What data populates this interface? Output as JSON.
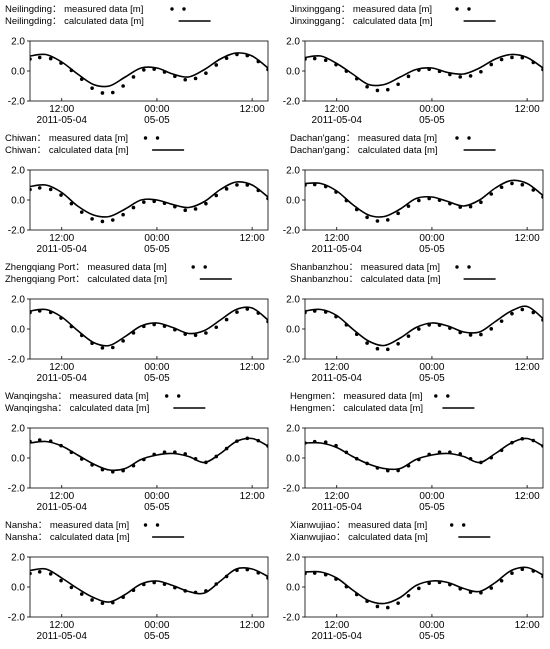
{
  "legend_template": {
    "measured_label": "measured data [m]",
    "calculated_label": "calculated data [m]",
    "separator": "："
  },
  "axis": {
    "y_ticks": [
      "2.0",
      "0.0",
      "-2.0"
    ],
    "y_ticks_values": [
      2.0,
      0.0,
      -2.0
    ],
    "ylim": [
      -2.0,
      2.0
    ],
    "x_ticks": [
      {
        "time": "2011-05-04 12:00",
        "label": "12:00",
        "sublabel": "2011-05-04"
      },
      {
        "time": "2011-05-05 00:00",
        "label": "00:00",
        "sublabel": "05-05"
      },
      {
        "time": "2011-05-05 12:00",
        "label": "12:00",
        "sublabel": ""
      }
    ],
    "xlim": [
      "2011-05-04 08:00",
      "2011-05-05 14:00"
    ]
  },
  "chart_data": [
    {
      "type": "line",
      "station": "Neilingding",
      "x": [
        "2011-05-04 08:00",
        "2011-05-04 10:00",
        "2011-05-04 12:00",
        "2011-05-04 14:00",
        "2011-05-04 16:00",
        "2011-05-04 18:00",
        "2011-05-04 20:00",
        "2011-05-04 22:00",
        "2011-05-05 00:00",
        "2011-05-05 02:00",
        "2011-05-05 04:00",
        "2011-05-05 06:00",
        "2011-05-05 08:00",
        "2011-05-05 10:00",
        "2011-05-05 12:00",
        "2011-05-05 14:00"
      ],
      "series": [
        {
          "name": "measured data [m]",
          "style": "dots",
          "values": [
            0.8,
            0.9,
            0.5,
            -0.3,
            -1.2,
            -1.5,
            -0.9,
            0.0,
            0.1,
            -0.3,
            -0.6,
            -0.2,
            0.6,
            1.1,
            0.9,
            0.1
          ]
        },
        {
          "name": "calculated data [m]",
          "style": "line",
          "values": [
            1.0,
            1.1,
            0.6,
            -0.2,
            -0.9,
            -1.0,
            -0.4,
            0.2,
            0.2,
            -0.2,
            -0.4,
            0.1,
            0.8,
            1.2,
            1.0,
            0.2
          ]
        }
      ]
    },
    {
      "type": "line",
      "station": "Jinxinggang",
      "x": [
        "2011-05-04 08:00",
        "2011-05-04 10:00",
        "2011-05-04 12:00",
        "2011-05-04 14:00",
        "2011-05-04 16:00",
        "2011-05-04 18:00",
        "2011-05-04 20:00",
        "2011-05-04 22:00",
        "2011-05-05 00:00",
        "2011-05-05 02:00",
        "2011-05-05 04:00",
        "2011-05-05 06:00",
        "2011-05-05 08:00",
        "2011-05-05 10:00",
        "2011-05-05 12:00",
        "2011-05-05 14:00"
      ],
      "series": [
        {
          "name": "measured data [m]",
          "style": "dots",
          "values": [
            0.8,
            0.8,
            0.4,
            -0.3,
            -1.1,
            -1.3,
            -0.8,
            0.0,
            0.1,
            -0.2,
            -0.4,
            -0.1,
            0.6,
            0.9,
            0.8,
            0.1
          ]
        },
        {
          "name": "calculated data [m]",
          "style": "line",
          "values": [
            0.9,
            1.0,
            0.5,
            -0.2,
            -0.9,
            -0.9,
            -0.4,
            0.1,
            0.2,
            -0.1,
            -0.2,
            0.2,
            0.8,
            1.1,
            0.9,
            0.2
          ]
        }
      ]
    },
    {
      "type": "line",
      "station": "Chiwan",
      "x": [
        "2011-05-04 08:00",
        "2011-05-04 10:00",
        "2011-05-04 12:00",
        "2011-05-04 14:00",
        "2011-05-04 16:00",
        "2011-05-04 18:00",
        "2011-05-04 20:00",
        "2011-05-04 22:00",
        "2011-05-05 00:00",
        "2011-05-05 02:00",
        "2011-05-05 04:00",
        "2011-05-05 06:00",
        "2011-05-05 08:00",
        "2011-05-05 10:00",
        "2011-05-05 12:00",
        "2011-05-05 14:00"
      ],
      "series": [
        {
          "name": "measured data [m]",
          "style": "dots",
          "values": [
            0.7,
            0.8,
            0.3,
            -0.6,
            -1.3,
            -1.4,
            -0.9,
            -0.2,
            -0.1,
            -0.4,
            -0.7,
            -0.3,
            0.5,
            1.0,
            0.9,
            0.1
          ]
        },
        {
          "name": "calculated data [m]",
          "style": "line",
          "values": [
            0.9,
            1.0,
            0.5,
            -0.4,
            -1.0,
            -1.1,
            -0.6,
            0.0,
            0.0,
            -0.3,
            -0.5,
            -0.1,
            0.7,
            1.2,
            1.0,
            0.2
          ]
        }
      ]
    },
    {
      "type": "line",
      "station": "Dachan'gang",
      "x": [
        "2011-05-04 08:00",
        "2011-05-04 10:00",
        "2011-05-04 12:00",
        "2011-05-04 14:00",
        "2011-05-04 16:00",
        "2011-05-04 18:00",
        "2011-05-04 20:00",
        "2011-05-04 22:00",
        "2011-05-05 00:00",
        "2011-05-05 02:00",
        "2011-05-05 04:00",
        "2011-05-05 06:00",
        "2011-05-05 08:00",
        "2011-05-05 10:00",
        "2011-05-05 12:00",
        "2011-05-05 14:00"
      ],
      "series": [
        {
          "name": "measured data [m]",
          "style": "dots",
          "values": [
            1.0,
            1.0,
            0.5,
            -0.4,
            -1.2,
            -1.4,
            -0.8,
            -0.1,
            0.1,
            -0.2,
            -0.5,
            -0.2,
            0.6,
            1.1,
            0.9,
            0.2
          ]
        },
        {
          "name": "calculated data [m]",
          "style": "line",
          "values": [
            1.1,
            1.1,
            0.6,
            -0.3,
            -1.0,
            -1.1,
            -0.6,
            0.1,
            0.2,
            -0.1,
            -0.4,
            0.0,
            0.8,
            1.3,
            1.1,
            0.3
          ]
        }
      ]
    },
    {
      "type": "line",
      "station": "Zhengqiang Port",
      "x": [
        "2011-05-04 08:00",
        "2011-05-04 10:00",
        "2011-05-04 12:00",
        "2011-05-04 14:00",
        "2011-05-04 16:00",
        "2011-05-04 18:00",
        "2011-05-04 20:00",
        "2011-05-04 22:00",
        "2011-05-05 00:00",
        "2011-05-05 02:00",
        "2011-05-05 04:00",
        "2011-05-05 06:00",
        "2011-05-05 08:00",
        "2011-05-05 10:00",
        "2011-05-05 12:00",
        "2011-05-05 14:00"
      ],
      "series": [
        {
          "name": "measured data [m]",
          "style": "dots",
          "values": [
            1.1,
            1.2,
            0.7,
            -0.2,
            -1.0,
            -1.3,
            -0.7,
            0.1,
            0.3,
            0.0,
            -0.4,
            -0.3,
            0.3,
            1.1,
            1.3,
            0.5
          ]
        },
        {
          "name": "calculated data [m]",
          "style": "line",
          "values": [
            1.2,
            1.3,
            0.8,
            -0.1,
            -0.9,
            -1.1,
            -0.5,
            0.2,
            0.4,
            0.1,
            -0.3,
            -0.1,
            0.6,
            1.3,
            1.4,
            0.6
          ]
        }
      ]
    },
    {
      "type": "line",
      "station": "Shanbanzhou",
      "x": [
        "2011-05-04 08:00",
        "2011-05-04 10:00",
        "2011-05-04 12:00",
        "2011-05-04 14:00",
        "2011-05-04 16:00",
        "2011-05-04 18:00",
        "2011-05-04 20:00",
        "2011-05-04 22:00",
        "2011-05-05 00:00",
        "2011-05-05 02:00",
        "2011-05-05 04:00",
        "2011-05-05 06:00",
        "2011-05-05 08:00",
        "2011-05-05 10:00",
        "2011-05-05 12:00",
        "2011-05-05 14:00"
      ],
      "series": [
        {
          "name": "measured data [m]",
          "style": "dots",
          "values": [
            1.1,
            1.2,
            0.8,
            -0.1,
            -1.0,
            -1.4,
            -0.9,
            -0.1,
            0.3,
            0.1,
            -0.3,
            -0.4,
            0.2,
            1.0,
            1.3,
            0.6
          ]
        },
        {
          "name": "calculated data [m]",
          "style": "line",
          "values": [
            1.2,
            1.3,
            0.9,
            0.0,
            -0.8,
            -1.1,
            -0.6,
            0.1,
            0.4,
            0.2,
            -0.2,
            -0.2,
            0.5,
            1.2,
            1.5,
            0.7
          ]
        }
      ]
    },
    {
      "type": "line",
      "station": "Wanqingsha",
      "x": [
        "2011-05-04 08:00",
        "2011-05-04 10:00",
        "2011-05-04 12:00",
        "2011-05-04 14:00",
        "2011-05-04 16:00",
        "2011-05-04 18:00",
        "2011-05-04 20:00",
        "2011-05-04 22:00",
        "2011-05-05 00:00",
        "2011-05-05 02:00",
        "2011-05-05 04:00",
        "2011-05-05 06:00",
        "2011-05-05 08:00",
        "2011-05-05 10:00",
        "2011-05-05 12:00",
        "2011-05-05 14:00"
      ],
      "series": [
        {
          "name": "measured data [m]",
          "style": "dots",
          "values": [
            1.1,
            1.2,
            0.8,
            0.1,
            -0.5,
            -0.9,
            -0.8,
            -0.2,
            0.3,
            0.4,
            0.2,
            -0.3,
            0.3,
            1.1,
            1.3,
            0.8
          ]
        },
        {
          "name": "calculated data [m]",
          "style": "line",
          "values": [
            1.0,
            1.1,
            0.8,
            0.2,
            -0.4,
            -0.8,
            -0.7,
            -0.1,
            0.2,
            0.3,
            0.1,
            -0.3,
            0.3,
            1.1,
            1.3,
            0.8
          ]
        }
      ]
    },
    {
      "type": "line",
      "station": "Hengmen",
      "x": [
        "2011-05-04 08:00",
        "2011-05-04 10:00",
        "2011-05-04 12:00",
        "2011-05-04 14:00",
        "2011-05-04 16:00",
        "2011-05-04 18:00",
        "2011-05-04 20:00",
        "2011-05-04 22:00",
        "2011-05-05 00:00",
        "2011-05-05 02:00",
        "2011-05-05 04:00",
        "2011-05-05 06:00",
        "2011-05-05 08:00",
        "2011-05-05 10:00",
        "2011-05-05 12:00",
        "2011-05-05 14:00"
      ],
      "series": [
        {
          "name": "measured data [m]",
          "style": "dots",
          "values": [
            1.0,
            1.1,
            0.8,
            0.1,
            -0.4,
            -0.8,
            -0.8,
            -0.2,
            0.3,
            0.4,
            0.2,
            -0.3,
            0.2,
            1.0,
            1.3,
            0.8
          ]
        },
        {
          "name": "calculated data [m]",
          "style": "line",
          "values": [
            1.0,
            1.0,
            0.7,
            0.1,
            -0.4,
            -0.7,
            -0.7,
            -0.1,
            0.2,
            0.3,
            0.1,
            -0.3,
            0.3,
            1.0,
            1.3,
            0.8
          ]
        }
      ]
    },
    {
      "type": "line",
      "station": "Nansha",
      "x": [
        "2011-05-04 08:00",
        "2011-05-04 10:00",
        "2011-05-04 12:00",
        "2011-05-04 14:00",
        "2011-05-04 16:00",
        "2011-05-04 18:00",
        "2011-05-04 20:00",
        "2011-05-04 22:00",
        "2011-05-05 00:00",
        "2011-05-05 02:00",
        "2011-05-05 04:00",
        "2011-05-05 06:00",
        "2011-05-05 08:00",
        "2011-05-05 10:00",
        "2011-05-05 12:00",
        "2011-05-05 14:00"
      ],
      "series": [
        {
          "name": "measured data [m]",
          "style": "dots",
          "values": [
            0.9,
            1.0,
            0.4,
            -0.3,
            -0.9,
            -1.1,
            -0.6,
            0.1,
            0.3,
            0.0,
            -0.3,
            -0.3,
            0.4,
            1.1,
            1.1,
            0.6
          ]
        },
        {
          "name": "calculated data [m]",
          "style": "line",
          "values": [
            1.1,
            1.2,
            0.6,
            -0.1,
            -0.7,
            -1.0,
            -0.5,
            0.2,
            0.4,
            0.1,
            -0.3,
            -0.4,
            0.4,
            1.2,
            1.2,
            0.7
          ]
        }
      ]
    },
    {
      "type": "line",
      "station": "Xianwujiao",
      "x": [
        "2011-05-04 08:00",
        "2011-05-04 10:00",
        "2011-05-04 12:00",
        "2011-05-04 14:00",
        "2011-05-04 16:00",
        "2011-05-04 18:00",
        "2011-05-04 20:00",
        "2011-05-04 22:00",
        "2011-05-05 00:00",
        "2011-05-05 02:00",
        "2011-05-05 04:00",
        "2011-05-05 06:00",
        "2011-05-05 08:00",
        "2011-05-05 10:00",
        "2011-05-05 12:00",
        "2011-05-05 14:00"
      ],
      "series": [
        {
          "name": "measured data [m]",
          "style": "dots",
          "values": [
            0.9,
            0.9,
            0.5,
            -0.3,
            -1.0,
            -1.4,
            -1.0,
            -0.2,
            0.3,
            0.2,
            -0.2,
            -0.4,
            0.1,
            0.9,
            1.2,
            0.7
          ]
        },
        {
          "name": "calculated data [m]",
          "style": "line",
          "values": [
            1.0,
            1.0,
            0.6,
            -0.2,
            -0.9,
            -1.1,
            -0.7,
            0.1,
            0.4,
            0.3,
            -0.1,
            -0.3,
            0.3,
            1.1,
            1.3,
            0.8
          ]
        }
      ]
    }
  ]
}
